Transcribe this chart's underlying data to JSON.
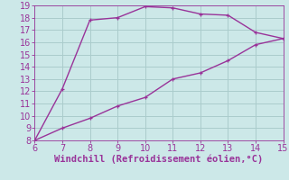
{
  "x_upper": [
    6,
    7,
    8,
    9,
    10,
    11,
    12,
    13,
    14,
    15
  ],
  "y_upper": [
    8,
    12.2,
    17.8,
    18.0,
    18.9,
    18.8,
    18.3,
    18.2,
    16.8,
    16.3
  ],
  "x_lower": [
    6,
    7,
    8,
    9,
    10,
    11,
    12,
    13,
    14,
    15
  ],
  "y_lower": [
    8,
    9.0,
    9.8,
    10.8,
    11.5,
    13.0,
    13.5,
    14.5,
    15.8,
    16.3
  ],
  "line_color": "#993399",
  "bg_color": "#cce8e8",
  "grid_color": "#aacccc",
  "xlabel": "Windchill (Refroidissement éolien,°C)",
  "xlabel_color": "#993399",
  "xlim": [
    6,
    15
  ],
  "ylim": [
    8,
    19
  ],
  "xticks": [
    6,
    7,
    8,
    9,
    10,
    11,
    12,
    13,
    14,
    15
  ],
  "yticks": [
    8,
    9,
    10,
    11,
    12,
    13,
    14,
    15,
    16,
    17,
    18,
    19
  ],
  "tick_color": "#993399",
  "marker_size": 2.5,
  "line_width": 1.0,
  "tick_fontsize": 7,
  "xlabel_fontsize": 7.5
}
